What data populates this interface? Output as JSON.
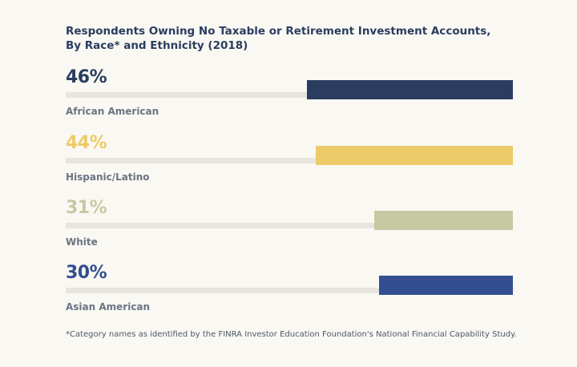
{
  "chart_data": {
    "type": "bar",
    "orientation": "horizontal",
    "title_lines": [
      "Respondents Owning No Taxable or Retirement Investment Accounts,",
      "By Race* and Ethnicity (2018)"
    ],
    "categories": [
      "African American",
      "Hispanic/Latino",
      "White",
      "Asian American"
    ],
    "values": [
      46,
      44,
      31,
      30
    ],
    "value_labels": [
      "46%",
      "44%",
      "31%",
      "30%"
    ],
    "unit": "%",
    "xlim": [
      0,
      100
    ],
    "colors": [
      "#2a3d5f",
      "#edcb68",
      "#c6c9a1",
      "#334f92"
    ],
    "label_colors": [
      "#2a3d5f",
      "#edcb68",
      "#c6c9a1",
      "#334f92"
    ],
    "footnote": "*Category names as identified by the FINRA Investor Education Foundation's National Financial Capability Study."
  }
}
